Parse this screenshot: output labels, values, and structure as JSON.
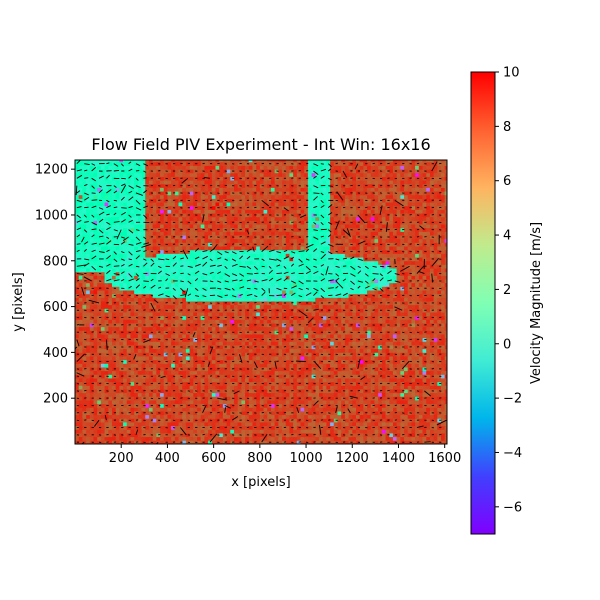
{
  "chart_data": {
    "type": "heatmap",
    "title": "Flow Field PIV Experiment - Int Win: 16x16",
    "xlabel": "x [pixels]",
    "ylabel": "y [pixels]",
    "xlim": [
      0,
      1610
    ],
    "ylim": [
      0,
      1240
    ],
    "xticks": [
      200,
      400,
      600,
      800,
      1000,
      1200,
      1400,
      1600
    ],
    "yticks": [
      200,
      400,
      600,
      800,
      1000,
      1200
    ],
    "colorbar": {
      "label": "Velocity Magnitude [m/s]",
      "range": [
        -7,
        10
      ],
      "ticks": [
        -6,
        -4,
        -2,
        0,
        2,
        4,
        6,
        8,
        10
      ],
      "colormap": "rainbow"
    },
    "field": {
      "grid_spacing": 16,
      "background_value": 8.5,
      "low_velocity_regions": [
        {
          "shape": "ellipse",
          "center": [
            760,
            735
          ],
          "radii": [
            640,
            115
          ],
          "value": 0.5
        },
        {
          "shape": "rect",
          "x": [
            0,
            310
          ],
          "y": [
            760,
            1240
          ],
          "value": 0.8
        },
        {
          "shape": "rect",
          "x": [
            1010,
            1100
          ],
          "y": [
            790,
            1240
          ],
          "value": 0.8
        }
      ],
      "quiver": {
        "direction": "mostly horizontal",
        "color": "#000000"
      }
    }
  }
}
